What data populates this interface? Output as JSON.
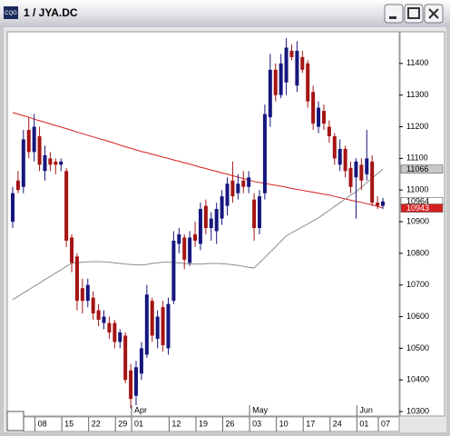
{
  "window": {
    "title": "1 / JYA.DC",
    "icon": "CQG"
  },
  "chart_data": {
    "type": "candlestick",
    "categories": [
      null,
      null,
      null,
      null,
      null,
      "08",
      null,
      null,
      null,
      null,
      "15",
      null,
      null,
      null,
      null,
      "22",
      null,
      null,
      null,
      null,
      "29",
      null,
      null,
      "01",
      null,
      null,
      null,
      null,
      null,
      null,
      "12",
      null,
      null,
      null,
      null,
      "19",
      null,
      null,
      null,
      null,
      "26",
      null,
      null,
      null,
      null,
      "03",
      null,
      null,
      null,
      null,
      "10",
      null,
      null,
      null,
      null,
      "17",
      null,
      null,
      null,
      null,
      "24",
      null,
      null,
      null,
      null,
      "01",
      null,
      null,
      null,
      "07"
    ],
    "month_labels": [
      {
        "index": 23,
        "label": "Apr"
      },
      {
        "index": 45,
        "label": "May"
      },
      {
        "index": 65,
        "label": "Jun"
      }
    ],
    "up_color": "#16167e",
    "down_color": "#a51414",
    "open": [
      10900,
      11030,
      11010,
      11190,
      11120,
      11170,
      11060,
      11100,
      11090,
      11080,
      11060,
      10850,
      10790,
      10690,
      10650,
      10660,
      10620,
      10580,
      10580,
      10580,
      10520,
      10540,
      10430,
      10350,
      10420,
      10480,
      10650,
      10530,
      10630,
      10500,
      10650,
      10830,
      10850,
      10770,
      10860,
      10830,
      10950,
      10880,
      10870,
      10910,
      10950,
      11030,
      10990,
      11030,
      11010,
      10970,
      10880,
      10990,
      11230,
      11380,
      11300,
      11340,
      11440,
      11330,
      11420,
      11400,
      11310,
      11200,
      11250,
      11200,
      11170,
      11080,
      11130,
      11070,
      11040,
      11080,
      11050,
      11090,
      10960,
      10950
    ],
    "high": [
      11010,
      11060,
      11190,
      11230,
      11240,
      11200,
      11140,
      11120,
      11100,
      11100,
      11070,
      10860,
      10800,
      10720,
      10720,
      10680,
      10640,
      10620,
      10600,
      10590,
      10560,
      10550,
      10450,
      10460,
      10520,
      10700,
      10660,
      10620,
      10650,
      10660,
      10870,
      10880,
      10860,
      10870,
      10900,
      10960,
      10970,
      10930,
      10960,
      11000,
      11040,
      11090,
      11050,
      11060,
      11060,
      10990,
      11000,
      11270,
      11430,
      11400,
      11430,
      11480,
      11460,
      11470,
      11440,
      11410,
      11330,
      11280,
      11270,
      11220,
      11180,
      11160,
      11140,
      11090,
      11100,
      11100,
      11190,
      11110,
      10980,
      10975
    ],
    "low": [
      10880,
      10990,
      10990,
      11100,
      11090,
      11060,
      11030,
      11060,
      11050,
      11060,
      10820,
      10740,
      10620,
      10610,
      10630,
      10590,
      10570,
      10560,
      10530,
      10500,
      10500,
      10390,
      10310,
      10320,
      10400,
      10470,
      10520,
      10500,
      10490,
      10480,
      10640,
      10800,
      10750,
      10760,
      10820,
      10810,
      10860,
      10840,
      10830,
      10890,
      10920,
      10960,
      10970,
      10990,
      10990,
      10840,
      10860,
      10970,
      11200,
      11280,
      11290,
      11300,
      11410,
      11310,
      11370,
      11260,
      11190,
      11180,
      11190,
      11150,
      11080,
      11060,
      11040,
      10990,
      10910,
      11000,
      11030,
      10950,
      10940,
      10940
    ],
    "close": [
      10990,
      11000,
      11160,
      11120,
      11200,
      11080,
      11110,
      11080,
      11080,
      11090,
      10840,
      10770,
      10650,
      10650,
      10700,
      10610,
      10590,
      10600,
      10550,
      10520,
      10550,
      10400,
      10340,
      10440,
      10500,
      10670,
      10540,
      10600,
      10510,
      10640,
      10840,
      10860,
      10780,
      10850,
      10840,
      10940,
      10880,
      10910,
      10940,
      10980,
      11020,
      10980,
      11020,
      11010,
      11040,
      10880,
      10980,
      11240,
      11380,
      11300,
      11400,
      11450,
      11420,
      11440,
      11380,
      11280,
      11210,
      11260,
      11210,
      11170,
      11100,
      11130,
      11060,
      11010,
      11090,
      11030,
      11100,
      10960,
      10950,
      10964
    ],
    "overlays": [
      {
        "color": "#d42020",
        "values": [
          11245,
          11240,
          11235,
          11230,
          11224,
          11219,
          11214,
          11209,
          11204,
          11199,
          11194,
          11189,
          11183,
          11178,
          11173,
          11168,
          11163,
          11158,
          11153,
          11148,
          11142,
          11137,
          11132,
          11127,
          11122,
          11118,
          11113,
          11109,
          11104,
          11100,
          11095,
          11091,
          11086,
          11082,
          11077,
          11072,
          11068,
          11063,
          11059,
          11054,
          11050,
          11045,
          11041,
          11036,
          11032,
          11027,
          11024,
          11021,
          11018,
          11015,
          11012,
          11009,
          11005,
          11002,
          10999,
          10996,
          10993,
          10990,
          10987,
          10984,
          10980,
          10976,
          10972,
          10968,
          10964,
          10961,
          10957,
          10953,
          10949,
          10943
        ]
      },
      {
        "color": "#8c8c8c",
        "values": [
          10654,
          10664,
          10675,
          10685,
          10696,
          10706,
          10717,
          10727,
          10738,
          10748,
          10759,
          10769,
          10770,
          10772,
          10773,
          10774,
          10774,
          10773,
          10772,
          10770,
          10768,
          10766,
          10765,
          10764,
          10763,
          10765,
          10768,
          10770,
          10772,
          10772,
          10771,
          10770,
          10768,
          10767,
          10766,
          10766,
          10767,
          10768,
          10768,
          10767,
          10766,
          10764,
          10762,
          10759,
          10756,
          10754,
          10770,
          10787,
          10804,
          10821,
          10838,
          10855,
          10865,
          10874,
          10884,
          10893,
          10903,
          10912,
          10924,
          10936,
          10948,
          10960,
          10972,
          10984,
          10995,
          11009,
          11023,
          11038,
          11052,
          11066
        ]
      }
    ],
    "ylim": [
      10286,
      11500
    ],
    "yticks": [
      10300,
      10400,
      10500,
      10600,
      10700,
      10800,
      10900,
      11000,
      11100,
      11200,
      11300,
      11400
    ],
    "grid": false
  }
}
